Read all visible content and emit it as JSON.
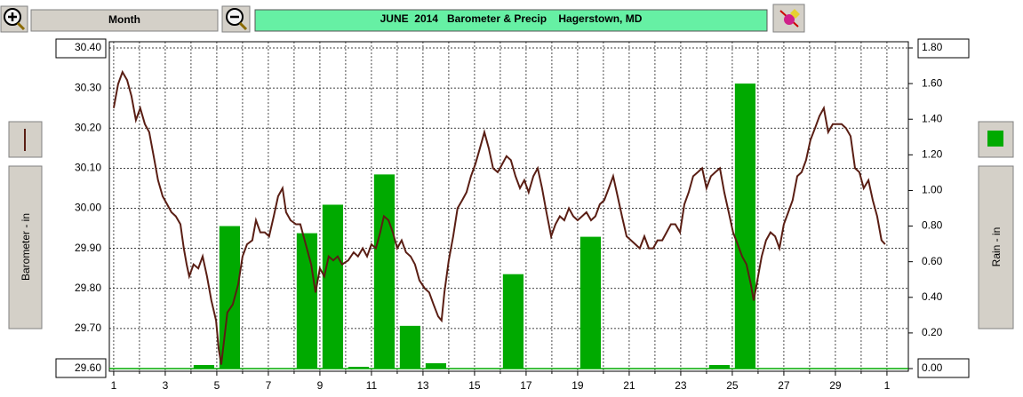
{
  "toolbar": {
    "period": "Month"
  },
  "chart_data": {
    "type": "combo",
    "title": "JUNE  2014   Barometer & Precip    Hagerstown, MD",
    "xlim": [
      0.83,
      31.83
    ],
    "xticks": [
      1,
      3,
      5,
      7,
      9,
      11,
      13,
      15,
      17,
      19,
      21,
      23,
      25,
      27,
      29,
      {
        "value": 31,
        "label": "1"
      }
    ],
    "minor_xticks": [
      2,
      4,
      6,
      8,
      10,
      12,
      14,
      16,
      18,
      20,
      22,
      24,
      26,
      28,
      30
    ],
    "ylim": [
      29.6,
      30.4
    ],
    "yticks": [
      {
        "value": 29.6,
        "label": "29.60"
      },
      {
        "value": 29.7,
        "label": "29.70"
      },
      {
        "value": 29.8,
        "label": "29.80"
      },
      {
        "value": 29.9,
        "label": "29.90"
      },
      {
        "value": 30.0,
        "label": "30.00"
      },
      {
        "value": 30.1,
        "label": "30.10"
      },
      {
        "value": 30.2,
        "label": "30.20"
      },
      {
        "value": 30.3,
        "label": "30.30"
      },
      {
        "value": 30.4,
        "label": "30.40"
      }
    ],
    "y2lim": [
      0,
      1.8
    ],
    "y2ticks": [
      {
        "value": 0,
        "label": "0.00"
      },
      {
        "value": 0.2,
        "label": "0.20"
      },
      {
        "value": 0.4,
        "label": "0.40"
      },
      {
        "value": 0.6,
        "label": "0.60"
      },
      {
        "value": 0.8,
        "label": "0.80"
      },
      {
        "value": 1.0,
        "label": "1.00"
      },
      {
        "value": 1.2,
        "label": "1.20"
      },
      {
        "value": 1.4,
        "label": "1.40"
      },
      {
        "value": 1.6,
        "label": "1.60"
      },
      {
        "value": 1.8,
        "label": "1.80"
      }
    ],
    "grid": true,
    "series": [
      {
        "name": "Barometer - in",
        "type": "line",
        "color": "#5a1e14",
        "x": [
          1.0,
          1.17,
          1.34,
          1.52,
          1.69,
          1.86,
          2.03,
          2.21,
          2.38,
          2.55,
          2.72,
          2.9,
          3.07,
          3.24,
          3.41,
          3.59,
          3.72,
          3.83,
          3.93,
          4.1,
          4.28,
          4.45,
          4.62,
          4.79,
          4.97,
          5.07,
          5.17,
          5.28,
          5.41,
          5.62,
          5.83,
          6.0,
          6.17,
          6.38,
          6.52,
          6.69,
          6.86,
          7.03,
          7.21,
          7.38,
          7.55,
          7.69,
          7.86,
          8.07,
          8.24,
          8.45,
          8.66,
          8.83,
          9.0,
          9.17,
          9.34,
          9.52,
          9.69,
          9.86,
          10.1,
          10.31,
          10.48,
          10.66,
          10.83,
          11.0,
          11.17,
          11.34,
          11.48,
          11.66,
          11.83,
          12.0,
          12.17,
          12.34,
          12.52,
          12.69,
          12.86,
          13.07,
          13.24,
          13.41,
          13.59,
          13.72,
          13.83,
          14.0,
          14.17,
          14.34,
          14.52,
          14.69,
          14.86,
          15.03,
          15.21,
          15.38,
          15.55,
          15.72,
          15.9,
          16.07,
          16.24,
          16.41,
          16.59,
          16.76,
          16.93,
          17.1,
          17.28,
          17.45,
          17.62,
          17.79,
          17.97,
          18.14,
          18.31,
          18.48,
          18.66,
          18.83,
          19.0,
          19.17,
          19.34,
          19.52,
          19.69,
          19.86,
          20.03,
          20.21,
          20.38,
          20.55,
          20.72,
          20.9,
          21.07,
          21.24,
          21.41,
          21.59,
          21.76,
          21.93,
          22.1,
          22.28,
          22.45,
          22.62,
          22.79,
          22.97,
          23.14,
          23.31,
          23.48,
          23.66,
          23.83,
          24.0,
          24.17,
          24.34,
          24.52,
          24.69,
          24.86,
          25.03,
          25.21,
          25.38,
          25.55,
          25.72,
          25.83,
          25.97,
          26.14,
          26.31,
          26.48,
          26.66,
          26.83,
          27.0,
          27.17,
          27.34,
          27.52,
          27.69,
          27.86,
          28.03,
          28.21,
          28.38,
          28.55,
          28.72,
          28.9,
          29.07,
          29.24,
          29.41,
          29.59,
          29.76,
          29.93,
          30.1,
          30.28,
          30.45,
          30.62,
          30.79,
          30.93
        ],
        "values": [
          30.25,
          30.31,
          30.34,
          30.32,
          30.28,
          30.22,
          30.25,
          30.21,
          30.19,
          30.13,
          30.07,
          30.03,
          30.01,
          29.99,
          29.98,
          29.96,
          29.9,
          29.86,
          29.83,
          29.86,
          29.85,
          29.88,
          29.83,
          29.77,
          29.72,
          29.65,
          29.61,
          29.67,
          29.74,
          29.76,
          29.81,
          29.88,
          29.91,
          29.92,
          29.97,
          29.94,
          29.94,
          29.93,
          29.98,
          30.03,
          30.05,
          29.99,
          29.97,
          29.96,
          29.96,
          29.91,
          29.86,
          29.79,
          29.85,
          29.83,
          29.88,
          29.87,
          29.88,
          29.86,
          29.87,
          29.89,
          29.88,
          29.9,
          29.88,
          29.91,
          29.9,
          29.94,
          29.98,
          29.97,
          29.94,
          29.9,
          29.92,
          29.89,
          29.88,
          29.86,
          29.82,
          29.8,
          29.79,
          29.76,
          29.73,
          29.72,
          29.79,
          29.87,
          29.93,
          30.0,
          30.02,
          30.04,
          30.08,
          30.11,
          30.15,
          30.19,
          30.15,
          30.1,
          30.09,
          30.11,
          30.13,
          30.12,
          30.08,
          30.05,
          30.07,
          30.04,
          30.08,
          30.1,
          30.05,
          29.99,
          29.93,
          29.96,
          29.98,
          29.97,
          30.0,
          29.98,
          29.97,
          29.98,
          29.99,
          29.97,
          29.98,
          30.01,
          30.02,
          30.05,
          30.08,
          30.03,
          29.98,
          29.93,
          29.92,
          29.91,
          29.9,
          29.93,
          29.9,
          29.9,
          29.92,
          29.92,
          29.94,
          29.96,
          29.96,
          29.94,
          30.01,
          30.04,
          30.08,
          30.09,
          30.1,
          30.05,
          30.08,
          30.09,
          30.1,
          30.04,
          29.99,
          29.94,
          29.91,
          29.88,
          29.86,
          29.81,
          29.77,
          29.82,
          29.88,
          29.92,
          29.94,
          29.93,
          29.9,
          29.96,
          29.99,
          30.02,
          30.08,
          30.09,
          30.12,
          30.17,
          30.2,
          30.23,
          30.25,
          30.19,
          30.21,
          30.21,
          30.21,
          30.2,
          30.18,
          30.1,
          30.09,
          30.05,
          30.07,
          30.02,
          29.98,
          29.92,
          29.91
        ]
      },
      {
        "name": "Rain - in",
        "type": "bar",
        "axis": "y2",
        "color": "#00aa00",
        "x": [
          1.5,
          2.5,
          3.5,
          4.5,
          5.5,
          6.5,
          7.5,
          8.5,
          9.5,
          10.5,
          11.5,
          12.5,
          13.5,
          14.5,
          15.5,
          16.5,
          17.5,
          18.5,
          19.5,
          20.5,
          21.5,
          22.5,
          23.5,
          24.5,
          25.5,
          26.5,
          27.5,
          28.5,
          29.5,
          30.5
        ],
        "values": [
          0,
          0,
          0,
          0.02,
          0.8,
          0,
          0,
          0.76,
          0.92,
          0.01,
          1.09,
          0.24,
          0.03,
          0,
          0,
          0.53,
          0,
          0,
          0.74,
          0,
          0,
          0,
          0,
          0.02,
          1.6,
          0,
          0,
          0,
          0,
          0
        ]
      }
    ]
  }
}
